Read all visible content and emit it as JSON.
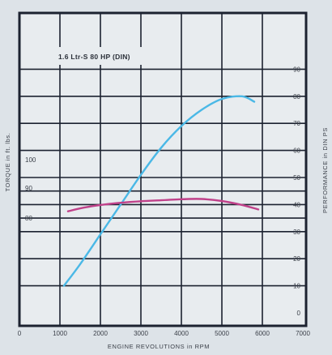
{
  "chart_data": {
    "type": "line",
    "title": "1.6 Ltr-S 80 HP (DIN)",
    "xlabel": "ENGINE REVOLUTIONS in RPM",
    "ylabel_left": "TORQUE in ft. lbs.",
    "ylabel_right": "PERFORMANCE in DIN PS",
    "xlim": [
      0,
      7000
    ],
    "x_ticks": [
      "0",
      "1000",
      "2000",
      "3000",
      "4000",
      "5000",
      "6000",
      "7000"
    ],
    "y_right_lim": [
      0,
      90
    ],
    "y_right_ticks": [
      "0",
      "10",
      "20",
      "30",
      "40",
      "50",
      "60",
      "70",
      "80",
      "90"
    ],
    "y_left_ticks": [
      "80",
      "90",
      "100"
    ],
    "grid": true,
    "series": [
      {
        "axis": "right",
        "color": "#4ab8e6",
        "x": [
          1100,
          1500,
          2000,
          2500,
          3000,
          3500,
          4000,
          4500,
          5000,
          5500,
          5800
        ],
        "y": [
          10,
          18,
          29,
          40,
          51,
          61,
          69,
          75,
          79,
          80,
          78
        ]
      },
      {
        "axis": "left",
        "color": "#c0418a",
        "x": [
          1200,
          1600,
          2000,
          2500,
          3000,
          3500,
          4000,
          4500,
          5000,
          5500,
          5900
        ],
        "y": [
          86,
          89,
          91,
          92.8,
          94,
          94.8,
          95.6,
          95.8,
          94.2,
          91,
          87.5
        ]
      }
    ]
  }
}
